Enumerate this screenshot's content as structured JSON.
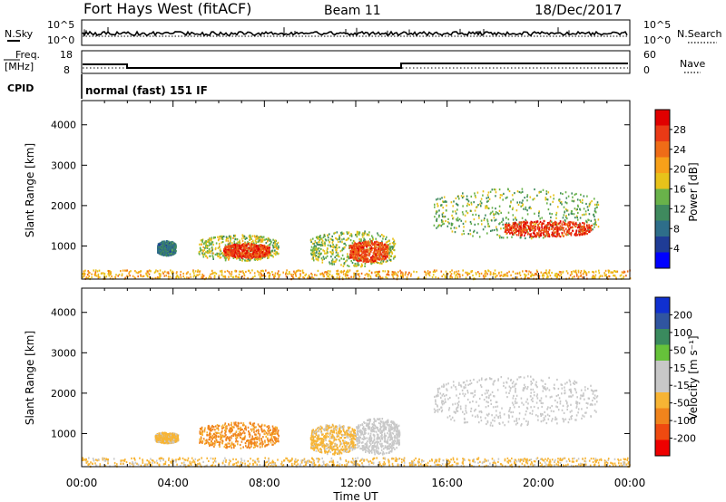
{
  "header": {
    "station": "Fort Hays West (fitACF)",
    "beam": "Beam 11",
    "date": "18/Dec/2017"
  },
  "noise_panel": {
    "left_label": "N.Sky",
    "right_label": "N.Search",
    "left_ticks": [
      "10^5",
      "10^0"
    ],
    "right_ticks": [
      "10^5",
      "10^0"
    ]
  },
  "freq_panel": {
    "left_label_1": "Freq.",
    "left_label_2": "[MHz]",
    "right_label": "Nave",
    "left_ticks": [
      "18",
      "8"
    ],
    "right_ticks": [
      "60",
      "0"
    ]
  },
  "cpid_panel": {
    "label": "CPID",
    "text": "normal (fast) 151 IF"
  },
  "colors": {
    "power_scale": [
      "#0000ff",
      "#1f3c96",
      "#2e6e8a",
      "#3f8a5e",
      "#69b24a",
      "#e8c21a",
      "#f7a019",
      "#ef6c17",
      "#ea3a16",
      "#e00000"
    ],
    "velocity_scale": [
      "#ef0000",
      "#ef4a10",
      "#f0841c",
      "#f7b434",
      "#c8c8c8",
      "#c8c8c8",
      "#66c23a",
      "#3a8a5e",
      "#3055a0",
      "#1030d0"
    ]
  },
  "chart_data": [
    {
      "type": "heatmap",
      "name": "power",
      "ylabel": "Slant Range [km]",
      "xlabel": "",
      "xlim": [
        0,
        24
      ],
      "ylim": [
        180,
        4600
      ],
      "xticks": [
        "00:00",
        "04:00",
        "08:00",
        "12:00",
        "16:00",
        "20:00",
        "00:00"
      ],
      "yticks": [
        1000,
        2000,
        3000,
        4000
      ],
      "colorbar_label": "Power [dB]",
      "colorbar_ticks": [
        "4",
        "8",
        "12",
        "16",
        "20",
        "24",
        "28"
      ],
      "colorbar_range": [
        0,
        32
      ],
      "blobs": [
        {
          "t0": 3.3,
          "t1": 4.1,
          "r0": 780,
          "r1": 1150,
          "value": 9
        },
        {
          "t0": 5.1,
          "t1": 8.6,
          "r0": 650,
          "r1": 1300,
          "value": 16
        },
        {
          "t0": 6.2,
          "t1": 8.2,
          "r0": 720,
          "r1": 1080,
          "value": 27
        },
        {
          "t0": 10.0,
          "t1": 13.7,
          "r0": 500,
          "r1": 1400,
          "value": 15
        },
        {
          "t0": 11.7,
          "t1": 13.4,
          "r0": 620,
          "r1": 1150,
          "value": 26
        },
        {
          "t0": 15.4,
          "t1": 22.6,
          "r0": 1200,
          "r1": 2450,
          "value": 14
        },
        {
          "t0": 18.5,
          "t1": 22.3,
          "r0": 1250,
          "r1": 1650,
          "value": 27
        },
        {
          "t0": 0.0,
          "t1": 24.0,
          "r0": 180,
          "r1": 420,
          "value": 20
        }
      ]
    },
    {
      "type": "heatmap",
      "name": "velocity",
      "ylabel": "Slant Range [km]",
      "xlabel": "Time UT",
      "xlim": [
        0,
        24
      ],
      "ylim": [
        180,
        4600
      ],
      "xticks": [
        "00:00",
        "04:00",
        "08:00",
        "12:00",
        "16:00",
        "20:00",
        "00:00"
      ],
      "yticks": [
        1000,
        2000,
        3000,
        4000
      ],
      "colorbar_label": "Velocity [m s⁻¹]",
      "colorbar_ticks": [
        "200",
        "100",
        "50",
        "15",
        "-15",
        "-50",
        "-100",
        "-200"
      ],
      "colorbar_range": [
        -250,
        250
      ],
      "blobs": [
        {
          "t0": 3.2,
          "t1": 4.2,
          "r0": 780,
          "r1": 1050,
          "value": -60
        },
        {
          "t0": 5.1,
          "t1": 8.6,
          "r0": 650,
          "r1": 1300,
          "value": -110
        },
        {
          "t0": 10.0,
          "t1": 12.0,
          "r0": 500,
          "r1": 1250,
          "value": -60
        },
        {
          "t0": 12.0,
          "t1": 13.9,
          "r0": 500,
          "r1": 1400,
          "value": 30
        },
        {
          "t0": 15.4,
          "t1": 22.6,
          "r0": 1200,
          "r1": 2450,
          "value": 0
        },
        {
          "t0": 0.0,
          "t1": 24.0,
          "r0": 180,
          "r1": 420,
          "value": -60
        }
      ]
    }
  ]
}
